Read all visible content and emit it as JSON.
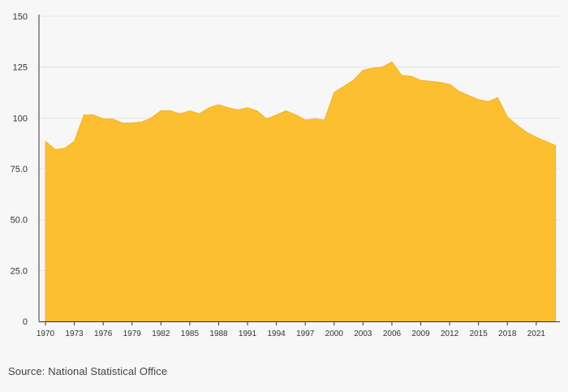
{
  "source": "Source: National Statistical Office",
  "colors": {
    "area": "#fbbf2f",
    "area_stroke": "#f4b41f"
  },
  "chart_data": {
    "type": "area",
    "title": "",
    "xlabel": "",
    "ylabel": "",
    "ylim": [
      0,
      150
    ],
    "yticks": [
      0,
      25,
      50,
      75,
      100,
      125,
      150
    ],
    "ytick_labels": [
      "0",
      "25.0",
      "50.0",
      "75.0",
      "100",
      "125",
      "150"
    ],
    "xticks": [
      1970,
      1973,
      1976,
      1979,
      1982,
      1985,
      1988,
      1991,
      1994,
      1997,
      2000,
      2003,
      2006,
      2009,
      2012,
      2015,
      2018,
      2021
    ],
    "xtick_labels": [
      "1970",
      "1973",
      "1976",
      "1979",
      "1982",
      "1985",
      "1988",
      "1991",
      "1994",
      "1997",
      "2000",
      "2003",
      "2006",
      "2009",
      "2012",
      "2015",
      "2018",
      "2021"
    ],
    "grid": true,
    "x": [
      1970,
      1971,
      1972,
      1973,
      1974,
      1975,
      1976,
      1977,
      1978,
      1979,
      1980,
      1981,
      1982,
      1983,
      1984,
      1985,
      1986,
      1987,
      1988,
      1989,
      1990,
      1991,
      1992,
      1993,
      1994,
      1995,
      1996,
      1997,
      1998,
      1999,
      2000,
      2001,
      2002,
      2003,
      2004,
      2005,
      2006,
      2007,
      2008,
      2009,
      2010,
      2011,
      2012,
      2013,
      2014,
      2015,
      2016,
      2017,
      2018,
      2019,
      2020,
      2021,
      2022,
      2023
    ],
    "values": [
      88.5,
      84.5,
      85.0,
      88.5,
      101.5,
      101.5,
      99.5,
      99.5,
      97.5,
      97.5,
      98.0,
      100.0,
      103.5,
      103.5,
      102.0,
      103.5,
      102.0,
      105.0,
      106.5,
      105.0,
      104.0,
      105.0,
      103.5,
      99.5,
      101.5,
      103.5,
      101.5,
      99.0,
      99.5,
      99.0,
      112.5,
      115.5,
      118.5,
      123.5,
      124.5,
      125.0,
      127.5,
      121.0,
      120.5,
      118.5,
      118.0,
      117.5,
      116.5,
      113.0,
      111.0,
      109.0,
      108.0,
      110.0,
      100.5,
      96.5,
      93.0,
      90.5,
      88.5,
      86.5
    ]
  }
}
